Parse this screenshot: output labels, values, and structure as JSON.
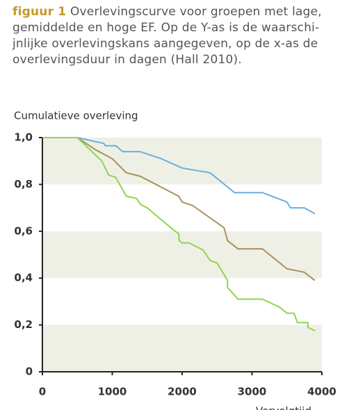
{
  "caption": {
    "label": "figuur 1",
    "lines": [
      "Overlevingscurve voor groepen met lage,",
      "gemiddelde en hoge EF. Op de Y-as is de waarschi-",
      "jnlijke overlevingskans aangegeven, op de x-as de",
      "overlevingsduur in dagen (Hall 2010)."
    ]
  },
  "chart_data": {
    "type": "line",
    "ylabel": "Cumulatieve overleving",
    "xlabel": "Vervolgtijd",
    "xlim": [
      0,
      4000
    ],
    "xticks": [
      0,
      1000,
      2000,
      3000,
      4000
    ],
    "ylim": [
      0,
      1
    ],
    "yticks": [
      {
        "value": 0,
        "label": "0"
      },
      {
        "value": 0.2,
        "label": "0,2"
      },
      {
        "value": 0.4,
        "label": "0,4"
      },
      {
        "value": 0.6,
        "label": "0,6"
      },
      {
        "value": 0.8,
        "label": "0,8"
      },
      {
        "value": 1,
        "label": "1,0"
      }
    ],
    "band_color": "#eef0e5",
    "series": [
      {
        "color": "#6aaee0",
        "x": [
          0,
          500,
          880,
          900,
          1050,
          1150,
          1400,
          1700,
          2000,
          2400,
          2750,
          3150,
          3500,
          3550,
          3750,
          3900
        ],
        "values": [
          1,
          1,
          0.975,
          0.965,
          0.965,
          0.94,
          0.94,
          0.91,
          0.87,
          0.85,
          0.765,
          0.765,
          0.725,
          0.7,
          0.7,
          0.675
        ]
      },
      {
        "color": "#a8915a",
        "x": [
          0,
          500,
          750,
          1000,
          1200,
          1400,
          1950,
          2000,
          2150,
          2600,
          2650,
          2800,
          3150,
          3500,
          3750,
          3900
        ],
        "values": [
          1,
          1,
          0.95,
          0.91,
          0.85,
          0.835,
          0.75,
          0.725,
          0.71,
          0.615,
          0.56,
          0.525,
          0.525,
          0.44,
          0.425,
          0.39
        ]
      },
      {
        "color": "#8fd44f",
        "x": [
          0,
          500,
          850,
          950,
          1050,
          1200,
          1350,
          1400,
          1500,
          1900,
          1950,
          1960,
          2000,
          2100,
          2300,
          2400,
          2500,
          2550,
          2650,
          2650,
          2800,
          3150,
          3400,
          3500,
          3600,
          3650,
          3800,
          3800,
          3900
        ],
        "values": [
          1,
          1,
          0.9,
          0.84,
          0.83,
          0.75,
          0.74,
          0.715,
          0.7,
          0.6,
          0.59,
          0.56,
          0.55,
          0.55,
          0.52,
          0.475,
          0.465,
          0.44,
          0.39,
          0.36,
          0.31,
          0.31,
          0.275,
          0.25,
          0.25,
          0.21,
          0.21,
          0.19,
          0.175
        ]
      }
    ]
  }
}
